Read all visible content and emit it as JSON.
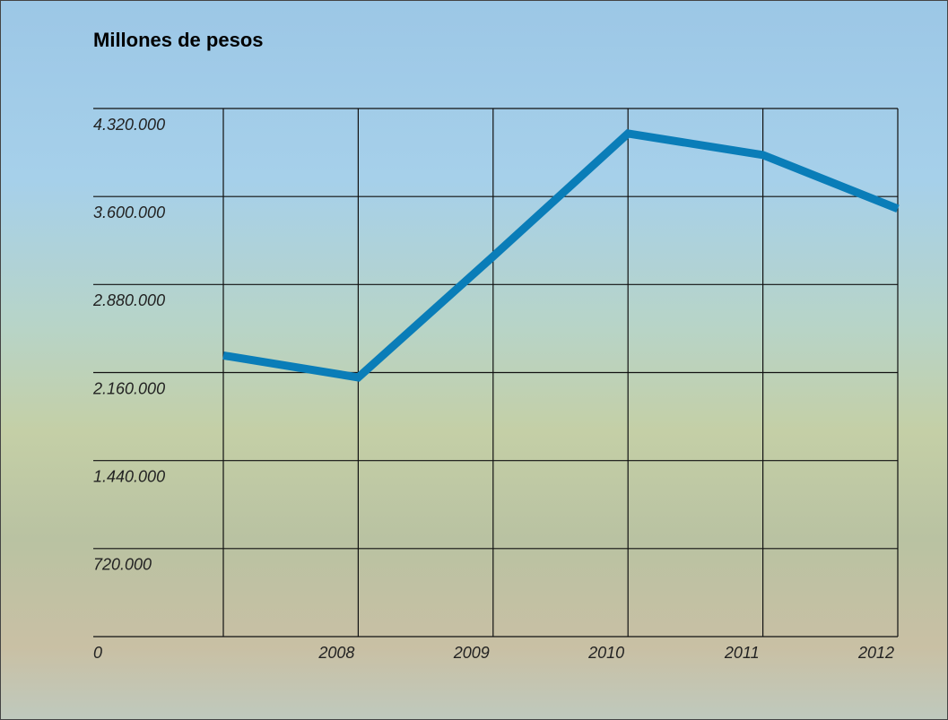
{
  "chart_data": {
    "type": "line",
    "title": "Millones de pesos",
    "categories": [
      null,
      "2008",
      "2009",
      "2010",
      "2011",
      "2012"
    ],
    "series": [
      {
        "name": "Millones de pesos",
        "color": "#0a7db8",
        "values": [
          2300000,
          2120000,
          3110000,
          4115000,
          3940000,
          3500000
        ]
      }
    ],
    "ylim": [
      0,
      4320000
    ],
    "yticks": [
      0,
      {
        "value": 720000,
        "label": "720.000"
      },
      {
        "value": 1440000,
        "label": "1.440.000"
      },
      {
        "value": 2160000,
        "label": "2.160.000"
      },
      {
        "value": 2880000,
        "label": "2.880.000"
      },
      {
        "value": 3600000,
        "label": "3.600.000"
      },
      {
        "value": 4320000,
        "label": "4.320.000"
      }
    ],
    "grid": true
  }
}
